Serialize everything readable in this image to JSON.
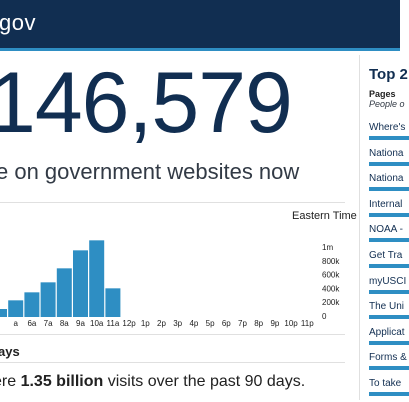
{
  "header": {
    "title": "gov"
  },
  "realtime": {
    "visitor_count": "146,579",
    "caption": "e on government websites now"
  },
  "timezone_label": "Eastern Time",
  "chart_data": {
    "type": "bar",
    "categories": [
      "",
      "a",
      "6a",
      "7a",
      "8a",
      "9a",
      "10a",
      "11a",
      "12p",
      "1p",
      "2p",
      "3p",
      "4p",
      "5p",
      "6p",
      "7p",
      "8p",
      "9p",
      "10p",
      "11p"
    ],
    "values": [
      120000,
      250000,
      370000,
      520000,
      730000,
      1000000,
      1150000,
      430000,
      0,
      0,
      0,
      0,
      0,
      0,
      0,
      0,
      0,
      0,
      0,
      0
    ],
    "y_ticks": [
      "1m",
      "800k",
      "600k",
      "400k",
      "200k",
      "0"
    ],
    "ylim": [
      0,
      1200000
    ],
    "color": "#2e8ec3"
  },
  "section": {
    "heading": "ays"
  },
  "summary": {
    "prefix": "ere ",
    "highlight": "1.35 billion",
    "suffix": " visits over the past 90 days."
  },
  "top_pages": {
    "title": "Top 2",
    "subtitle": "Pages",
    "subtitle2": "People o",
    "items": [
      {
        "label": "Where's"
      },
      {
        "label": "Nationa"
      },
      {
        "label": "Nationa"
      },
      {
        "label": "Internal"
      },
      {
        "label": "NOAA -"
      },
      {
        "label": "Get Tra"
      },
      {
        "label": "myUSCI"
      },
      {
        "label": "The Uni"
      },
      {
        "label": "Applicat"
      },
      {
        "label": "Forms &"
      },
      {
        "label": "To take"
      }
    ]
  }
}
